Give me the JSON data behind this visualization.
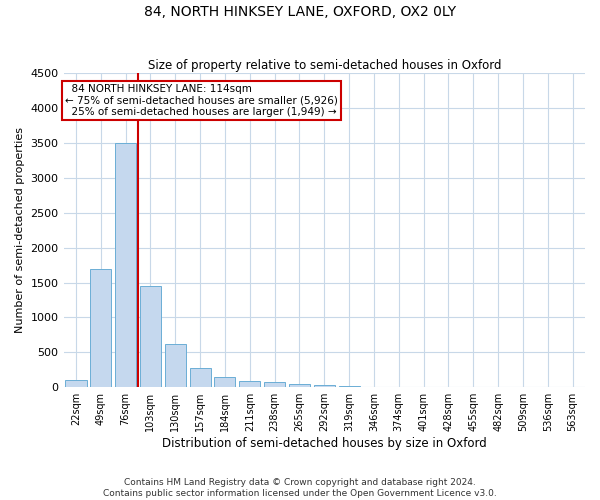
{
  "title": "84, NORTH HINKSEY LANE, OXFORD, OX2 0LY",
  "subtitle": "Size of property relative to semi-detached houses in Oxford",
  "xlabel": "Distribution of semi-detached houses by size in Oxford",
  "ylabel": "Number of semi-detached properties",
  "footer_line1": "Contains HM Land Registry data © Crown copyright and database right 2024.",
  "footer_line2": "Contains public sector information licensed under the Open Government Licence v3.0.",
  "property_label": "84 NORTH HINKSEY LANE: 114sqm",
  "pct_smaller": 75,
  "count_smaller": 5926,
  "pct_larger": 25,
  "count_larger": 1949,
  "bin_labels": [
    "22sqm",
    "49sqm",
    "76sqm",
    "103sqm",
    "130sqm",
    "157sqm",
    "184sqm",
    "211sqm",
    "238sqm",
    "265sqm",
    "292sqm",
    "319sqm",
    "346sqm",
    "374sqm",
    "401sqm",
    "428sqm",
    "455sqm",
    "482sqm",
    "509sqm",
    "536sqm",
    "563sqm"
  ],
  "bin_values": [
    110,
    1700,
    3500,
    1450,
    620,
    270,
    145,
    90,
    75,
    45,
    25,
    15,
    10,
    8,
    7,
    5,
    5,
    4,
    4,
    3,
    3
  ],
  "bar_color": "#c5d8ee",
  "bar_edge_color": "#6baed6",
  "vline_color": "#cc0000",
  "annotation_box_color": "#cc0000",
  "background_color": "#ffffff",
  "grid_color": "#c8d8e8",
  "ylim": [
    0,
    4500
  ],
  "yticks": [
    0,
    500,
    1000,
    1500,
    2000,
    2500,
    3000,
    3500,
    4000,
    4500
  ],
  "vline_x": 2.5,
  "figwidth": 6.0,
  "figheight": 5.0
}
